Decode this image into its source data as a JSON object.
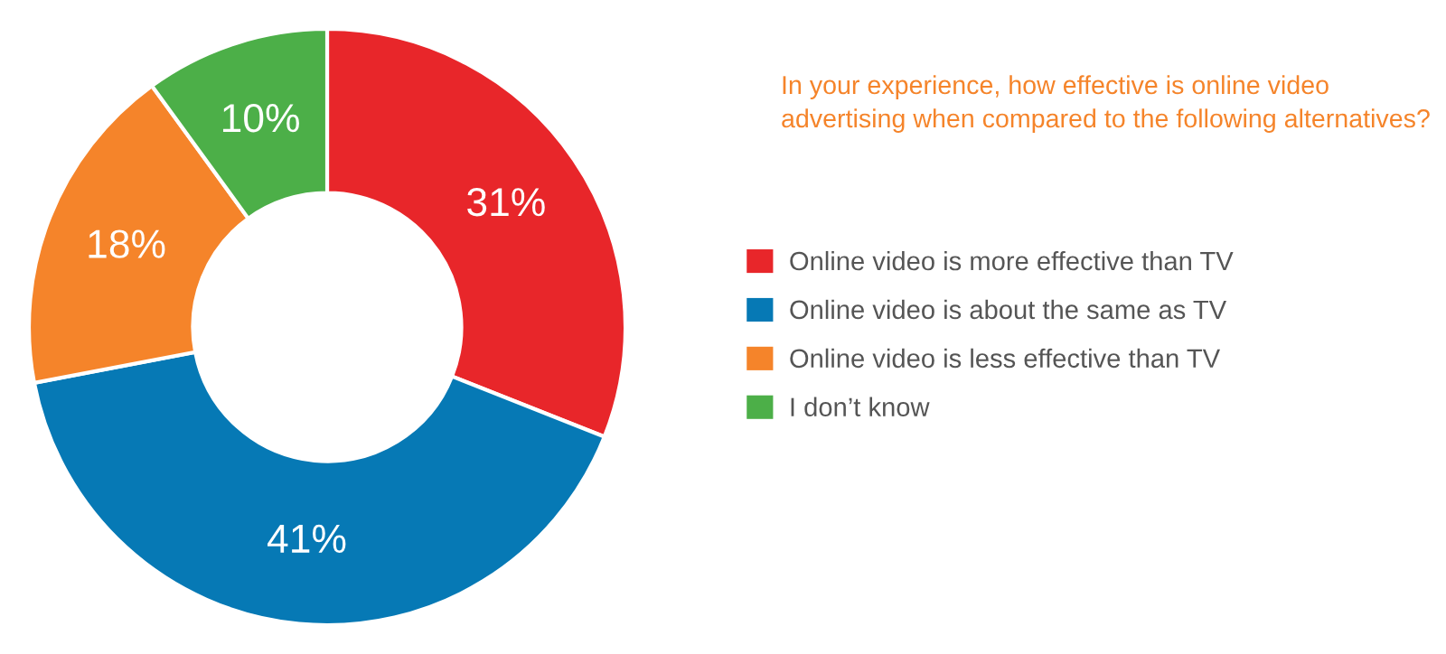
{
  "chart_data": {
    "type": "donut",
    "title": "In your experience, how effective is online video\nadvertising when compared to the following alternatives?",
    "categories": [
      "Online video is more effective than TV",
      "Online video is about the same as TV",
      "Online video is less effective than TV",
      "I don’t know"
    ],
    "values": [
      31,
      41,
      18,
      10
    ],
    "value_labels": [
      "31%",
      "41%",
      "18%",
      "10%"
    ],
    "colors": [
      "#e8262a",
      "#0679b5",
      "#f5842a",
      "#4caf48"
    ],
    "legend": "right"
  }
}
